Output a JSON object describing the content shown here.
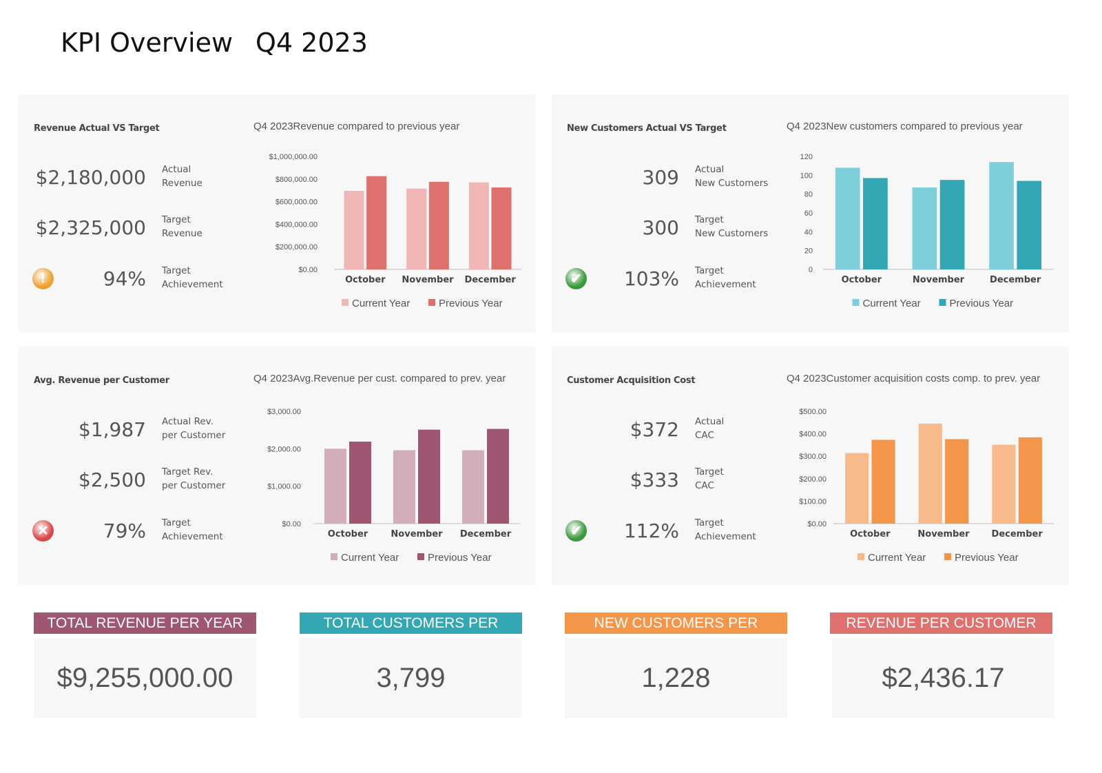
{
  "header": {
    "title": "KPI Overview",
    "period": "Q4 2023"
  },
  "panels": [
    {
      "title": "Revenue Actual VS Target",
      "chart_title": "Q4 2023Revenue compared to previous year",
      "rows": [
        {
          "value": "$2,180,000",
          "label1": "Actual",
          "label2": "Revenue"
        },
        {
          "value": "$2,325,000",
          "label1": "Target",
          "label2": "Revenue"
        },
        {
          "value": "94%",
          "label1": "Target",
          "label2": "Achievement"
        }
      ],
      "status_icon": "warning-icon",
      "status_color": "#f0a030"
    },
    {
      "title": "New Customers Actual VS Target",
      "chart_title": "Q4 2023New customers compared to previous year",
      "rows": [
        {
          "value": "309",
          "label1": "Actual",
          "label2": "New Customers"
        },
        {
          "value": "300",
          "label1": "Target",
          "label2": "New Customers"
        },
        {
          "value": "103%",
          "label1": "Target",
          "label2": "Achievement"
        }
      ],
      "status_icon": "check-icon",
      "status_color": "#3a9a3a"
    },
    {
      "title": "Avg. Revenue per Customer",
      "chart_title": "Q4 2023Avg.Revenue per cust. compared to prev. year",
      "rows": [
        {
          "value": "$1,987",
          "label1": "Actual Rev.",
          "label2": "per Customer"
        },
        {
          "value": "$2,500",
          "label1": "Target Rev.",
          "label2": "per Customer"
        },
        {
          "value": "79%",
          "label1": "Target",
          "label2": "Achievement"
        }
      ],
      "status_icon": "error-x-icon",
      "status_color": "#d94848"
    },
    {
      "title": "Customer Acquisition Cost",
      "chart_title": "Q4 2023Customer acquisition costs comp. to prev. year",
      "rows": [
        {
          "value": "$372",
          "label1": "Actual",
          "label2": "CAC"
        },
        {
          "value": "$333",
          "label1": "Target",
          "label2": "CAC"
        },
        {
          "value": "112%",
          "label1": "Target",
          "label2": "Achievement"
        }
      ],
      "status_icon": "check-icon",
      "status_color": "#3a9a3a"
    }
  ],
  "chart_data": [
    {
      "type": "bar",
      "categories": [
        "October",
        "November",
        "December"
      ],
      "ylim": [
        0,
        1000000
      ],
      "yticks": [
        "$0.00",
        "$200,000.00",
        "$400,000.00",
        "$600,000.00",
        "$800,000.00",
        "$1,000,000.00"
      ],
      "legend": "bottom",
      "grid": false,
      "series": [
        {
          "name": "Current Year",
          "values": [
            695000,
            715000,
            770000
          ],
          "color": "#efb6b5"
        },
        {
          "name": "Previous Year",
          "values": [
            825000,
            775000,
            725000
          ],
          "color": "#e0706e"
        }
      ]
    },
    {
      "type": "bar",
      "categories": [
        "October",
        "November",
        "December"
      ],
      "ylim": [
        0,
        120
      ],
      "yticks": [
        "0",
        "20",
        "40",
        "60",
        "80",
        "100",
        "120"
      ],
      "legend": "bottom",
      "grid": false,
      "series": [
        {
          "name": "Current Year",
          "values": [
            108,
            87,
            114
          ],
          "color": "#7dd0db"
        },
        {
          "name": "Previous Year",
          "values": [
            97,
            95,
            94
          ],
          "color": "#33a7b3"
        }
      ]
    },
    {
      "type": "bar",
      "categories": [
        "October",
        "November",
        "December"
      ],
      "ylim": [
        0,
        3000
      ],
      "yticks": [
        "$0.00",
        "$1,000.00",
        "$2,000.00",
        "$3,000.00"
      ],
      "legend": "bottom",
      "grid": false,
      "series": [
        {
          "name": "Current Year",
          "values": [
            2000,
            1960,
            1960
          ],
          "color": "#d4adbb"
        },
        {
          "name": "Previous Year",
          "values": [
            2190,
            2510,
            2530
          ],
          "color": "#9e5672"
        }
      ]
    },
    {
      "type": "bar",
      "categories": [
        "October",
        "November",
        "December"
      ],
      "ylim": [
        0,
        500
      ],
      "yticks": [
        "$0.00",
        "$100.00",
        "$200.00",
        "$300.00",
        "$400.00",
        "$500.00"
      ],
      "legend": "bottom",
      "grid": false,
      "series": [
        {
          "name": "Current Year",
          "values": [
            314,
            445,
            351
          ],
          "color": "#f8ba8a"
        },
        {
          "name": "Previous Year",
          "values": [
            373,
            376,
            384
          ],
          "color": "#f4964a"
        }
      ]
    }
  ],
  "totals": [
    {
      "label": "TOTAL REVENUE PER YEAR",
      "value": "$9,255,000.00",
      "color": "#9e5672"
    },
    {
      "label": "TOTAL CUSTOMERS PER",
      "value": "3,799",
      "color": "#33a7b3"
    },
    {
      "label": "NEW CUSTOMERS PER",
      "value": "1,228",
      "color": "#f4964a"
    },
    {
      "label": "REVENUE PER CUSTOMER",
      "value": "$2,436.17",
      "color": "#e0706e"
    }
  ]
}
